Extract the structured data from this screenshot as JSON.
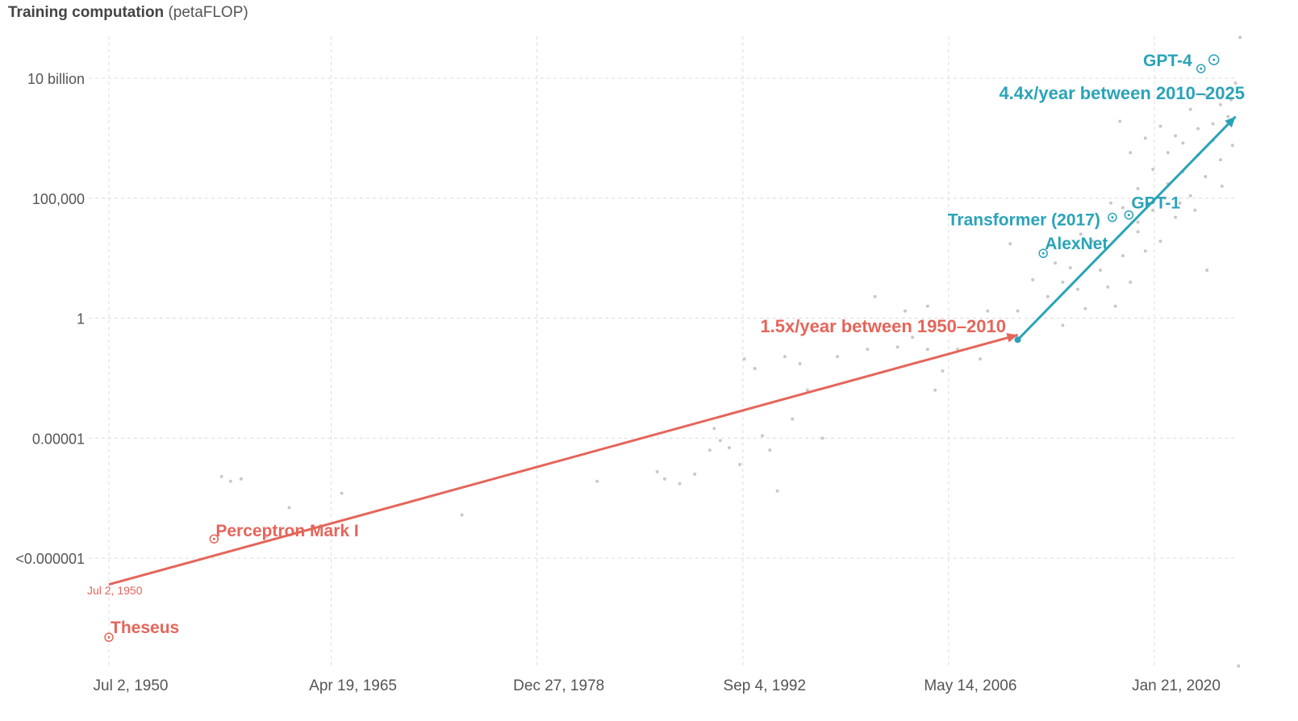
{
  "chart_data": {
    "type": "scatter",
    "y_title_bold": "Training computation",
    "y_title_unit": "(petaFLOP)",
    "y_scale": "log",
    "ylim_log10": [
      -7.6,
      9.9
    ],
    "xlim_year": [
      1949.8,
      2025.9
    ],
    "grid": true,
    "y_ticks": [
      {
        "label": "10 billion",
        "log10": 10
      },
      {
        "label": "100,000",
        "log10": 5
      },
      {
        "label": "1",
        "log10": 0
      },
      {
        "label": "0.00001",
        "log10": -5
      },
      {
        "label": "<0.000001",
        "log10": -10
      }
    ],
    "x_ticks": [
      {
        "label": "Jul 2, 1950",
        "year": 1950.5
      },
      {
        "label": "Apr 19, 1965",
        "year": 1965.3
      },
      {
        "label": "Dec 27, 1978",
        "year": 1979.0
      },
      {
        "label": "Sep 4, 1992",
        "year": 1992.7
      },
      {
        "label": "May 14, 2006",
        "year": 2006.4
      },
      {
        "label": "Jan 21, 2020",
        "year": 2020.1
      }
    ],
    "start_label": "Jul 2, 1950",
    "trends": [
      {
        "label": "1.5x/year between 1950–2010",
        "color": "#e5655a",
        "from": {
          "year": 1950.5,
          "log10": -11.1
        },
        "to": {
          "year": 2011.0,
          "log10": -0.7
        }
      },
      {
        "label": "4.4x/year between 2010–2025",
        "color": "#2aa3b8",
        "from": {
          "year": 2011.0,
          "log10": -0.9
        },
        "to": {
          "year": 2025.5,
          "log10": 8.4
        }
      }
    ],
    "labeled_points": [
      {
        "name": "Theseus",
        "year": 1950.5,
        "log10": -13.3,
        "color": "#e5655a"
      },
      {
        "name": "Perceptron Mark I",
        "year": 1957.5,
        "log10": -9.2,
        "color": "#e5655a"
      },
      {
        "name": "AlexNet",
        "year": 2012.7,
        "log10": 2.7,
        "color": "#2aa3b8"
      },
      {
        "name": "Transformer (2017)",
        "year": 2017.3,
        "log10": 4.2,
        "color": "#2aa3b8"
      },
      {
        "name": "GPT-1",
        "year": 2018.4,
        "log10": 4.3,
        "color": "#2aa3b8"
      },
      {
        "name": "GPT-4",
        "year": 2023.2,
        "log10": 10.4,
        "color": "#2aa3b8"
      }
    ],
    "scatter_points": [
      [
        1958.0,
        -6.6
      ],
      [
        1958.6,
        -6.8
      ],
      [
        1959.3,
        -6.7
      ],
      [
        1961.0,
        -9.1
      ],
      [
        1962.5,
        -7.9
      ],
      [
        1966.0,
        -7.3
      ],
      [
        1974.0,
        -8.2
      ],
      [
        1983.0,
        -6.8
      ],
      [
        1987.0,
        -6.4
      ],
      [
        1987.5,
        -6.7
      ],
      [
        1988.5,
        -6.9
      ],
      [
        1989.5,
        -6.5
      ],
      [
        1990.5,
        -5.5
      ],
      [
        1990.8,
        -4.6
      ],
      [
        1991.2,
        -5.1
      ],
      [
        1991.8,
        -5.4
      ],
      [
        1992.5,
        -6.1
      ],
      [
        1994.0,
        -4.9
      ],
      [
        1994.5,
        -5.5
      ],
      [
        1995.0,
        -7.2
      ],
      [
        1996.0,
        -4.2
      ],
      [
        1997.0,
        -3.0
      ],
      [
        1998.0,
        -5.0
      ],
      [
        1992.8,
        -1.7
      ],
      [
        1993.5,
        -2.1
      ],
      [
        1995.5,
        -1.6
      ],
      [
        1996.5,
        -1.9
      ],
      [
        1999.0,
        -1.6
      ],
      [
        2001.0,
        -1.3
      ],
      [
        2003.0,
        -1.2
      ],
      [
        2004.0,
        -0.8
      ],
      [
        2005.0,
        -1.3
      ],
      [
        2006.0,
        -2.2
      ],
      [
        2005.5,
        -3.0
      ],
      [
        2007.0,
        -1.3
      ],
      [
        2008.5,
        -1.7
      ],
      [
        2001.5,
        0.9
      ],
      [
        2003.5,
        0.3
      ],
      [
        2005.0,
        0.5
      ],
      [
        2009.0,
        0.3
      ],
      [
        2010.5,
        3.1
      ],
      [
        2011.0,
        0.3
      ],
      [
        2012.0,
        1.6
      ],
      [
        2013.0,
        0.9
      ],
      [
        2014.0,
        -0.3
      ],
      [
        2014.5,
        2.1
      ],
      [
        2015.0,
        1.2
      ],
      [
        2015.5,
        0.4
      ],
      [
        2016.0,
        3.2
      ],
      [
        2016.5,
        2.0
      ],
      [
        2017.0,
        1.3
      ],
      [
        2017.5,
        0.5
      ],
      [
        2018.0,
        2.6
      ],
      [
        2018.5,
        1.5
      ],
      [
        2019.0,
        3.6
      ],
      [
        2019.5,
        2.8
      ],
      [
        2020.0,
        4.5
      ],
      [
        2020.5,
        3.2
      ],
      [
        2021.0,
        5.6
      ],
      [
        2021.5,
        4.2
      ],
      [
        2022.0,
        6.1
      ],
      [
        2022.5,
        5.1
      ],
      [
        2023.0,
        6.8
      ],
      [
        2023.5,
        5.9
      ],
      [
        2024.0,
        7.4
      ],
      [
        2024.5,
        6.6
      ],
      [
        2025.0,
        8.4
      ],
      [
        2025.5,
        9.8
      ],
      [
        2017.8,
        8.2
      ],
      [
        2018.5,
        6.9
      ],
      [
        2019.5,
        7.5
      ],
      [
        2020.5,
        8.0
      ],
      [
        2021.5,
        7.6
      ],
      [
        2022.5,
        8.7
      ],
      [
        2023.5,
        9.3
      ],
      [
        2024.5,
        8.9
      ],
      [
        2025.2,
        9.1
      ],
      [
        2019.0,
        5.4
      ],
      [
        2020.0,
        6.2
      ],
      [
        2021.0,
        6.9
      ],
      [
        2022.0,
        7.3
      ],
      [
        2023.0,
        7.9
      ],
      [
        2024.0,
        8.1
      ],
      [
        2023.6,
        2.0
      ],
      [
        2017.2,
        4.8
      ],
      [
        2018.0,
        4.6
      ],
      [
        2019.0,
        4.0
      ],
      [
        2020.8,
        5.0
      ],
      [
        2021.8,
        4.8
      ],
      [
        2022.8,
        4.5
      ],
      [
        2024.6,
        5.5
      ],
      [
        2016.0,
        4.3
      ],
      [
        2015.2,
        3.5
      ],
      [
        2013.5,
        2.3
      ],
      [
        2014.0,
        1.5
      ],
      [
        2025.3,
        7.2
      ],
      [
        2025.7,
        -14.5
      ],
      [
        2025.8,
        11.7
      ]
    ]
  }
}
